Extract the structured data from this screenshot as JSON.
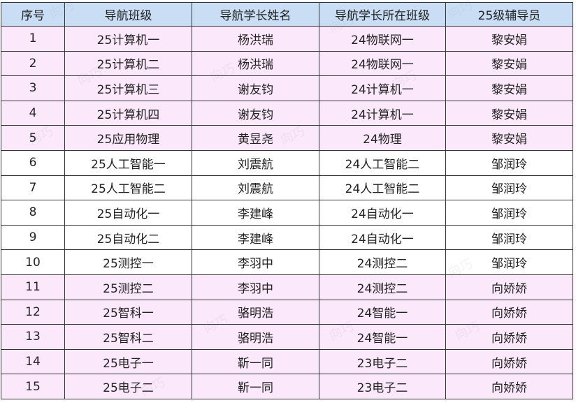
{
  "headers": [
    "序号",
    "导航班级",
    "导航学长姓名",
    "导航学长所在班级",
    "25级辅导员"
  ],
  "rows": [
    [
      "1",
      "25计算机一",
      "杨洪瑞",
      "24物联网一",
      "黎安娟"
    ],
    [
      "2",
      "25计算机二",
      "杨洪瑞",
      "24物联网一",
      "黎安娟"
    ],
    [
      "3",
      "25计算机三",
      "谢友钧",
      "24计算机一",
      "黎安娟"
    ],
    [
      "4",
      "25计算机四",
      "谢友钧",
      "24计算机一",
      "黎安娟"
    ],
    [
      "5",
      "25应用物理",
      "黄昱尧",
      "24物理",
      "黎安娟"
    ],
    [
      "6",
      "25人工智能一",
      "刘震航",
      "24人工智能二",
      "邹润玲"
    ],
    [
      "7",
      "25人工智能二",
      "刘震航",
      "24人工智能二",
      "邹润玲"
    ],
    [
      "8",
      "25自动化一",
      "李建峰",
      "24自动化一",
      "邹润玲"
    ],
    [
      "9",
      "25自动化二",
      "李建峰",
      "24自动化一",
      "邹润玲"
    ],
    [
      "10",
      "25测控一",
      "李羽中",
      "24测控二",
      "邹润玲"
    ],
    [
      "11",
      "25测控二",
      "李羽中",
      "24测控二",
      "向娇娇"
    ],
    [
      "12",
      "25智科一",
      "骆明浩",
      "24智能一",
      "向娇娇"
    ],
    [
      "13",
      "25智科二",
      "骆明浩",
      "24智能一",
      "向娇娇"
    ],
    [
      "14",
      "25电子一",
      "靳一同",
      "23电子二",
      "向娇娇"
    ],
    [
      "15",
      "25电子二",
      "靳一同",
      "23电子二",
      "向娇娇"
    ]
  ],
  "watermark": "向巧",
  "colors": {
    "header_bg": "#c9def5",
    "pink_row": "#fbe8fb",
    "white_row": "#ffffff",
    "border": "#333333"
  }
}
